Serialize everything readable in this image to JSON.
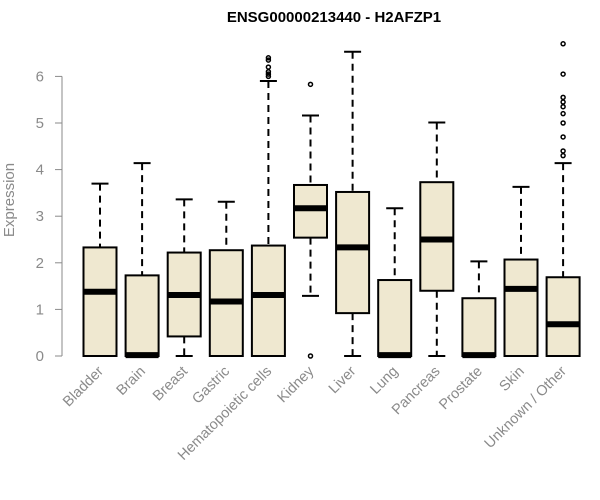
{
  "chart_data": {
    "type": "box",
    "title": "ENSG00000213440 - H2AFZP1",
    "xlabel": "",
    "ylabel": "Expression",
    "ylim": [
      0,
      6.8
    ],
    "yticks": [
      0,
      1,
      2,
      3,
      4,
      5,
      6
    ],
    "box_fill": "#efe8d0",
    "categories": [
      "Bladder",
      "Brain",
      "Breast",
      "Gastric",
      "Hematopoietic cells",
      "Kidney",
      "Liver",
      "Lung",
      "Pancreas",
      "Prostate",
      "Skin",
      "Unknown / Other"
    ],
    "boxes": [
      {
        "category": "Bladder",
        "whisker_low": 0,
        "q1": 0,
        "median": 1.38,
        "q3": 2.33,
        "whisker_high": 3.7,
        "outliers": []
      },
      {
        "category": "Brain",
        "whisker_low": 0,
        "q1": 0,
        "median": 0.02,
        "q3": 1.73,
        "whisker_high": 4.14,
        "outliers": []
      },
      {
        "category": "Breast",
        "whisker_low": 0,
        "q1": 0.42,
        "median": 1.31,
        "q3": 2.22,
        "whisker_high": 3.36,
        "outliers": []
      },
      {
        "category": "Gastric",
        "whisker_low": 0,
        "q1": 0,
        "median": 1.17,
        "q3": 2.27,
        "whisker_high": 3.31,
        "outliers": []
      },
      {
        "category": "Hematopoietic cells",
        "whisker_low": 0,
        "q1": 0,
        "median": 1.31,
        "q3": 2.37,
        "whisker_high": 5.9,
        "outliers": [
          6.0,
          6.05,
          6.1,
          6.2,
          6.35,
          6.4
        ]
      },
      {
        "category": "Kidney",
        "whisker_low": 1.29,
        "q1": 2.54,
        "median": 3.17,
        "q3": 3.67,
        "whisker_high": 5.16,
        "outliers": [
          0.0,
          5.83
        ]
      },
      {
        "category": "Liver",
        "whisker_low": 0,
        "q1": 0.92,
        "median": 2.33,
        "q3": 3.52,
        "whisker_high": 6.53,
        "outliers": []
      },
      {
        "category": "Lung",
        "whisker_low": 0,
        "q1": 0,
        "median": 0.02,
        "q3": 1.63,
        "whisker_high": 3.17,
        "outliers": []
      },
      {
        "category": "Pancreas",
        "whisker_low": 0,
        "q1": 1.4,
        "median": 2.5,
        "q3": 3.73,
        "whisker_high": 5.01,
        "outliers": []
      },
      {
        "category": "Prostate",
        "whisker_low": 0,
        "q1": 0,
        "median": 0.02,
        "q3": 1.24,
        "whisker_high": 2.03,
        "outliers": []
      },
      {
        "category": "Skin",
        "whisker_low": 0,
        "q1": 0,
        "median": 1.44,
        "q3": 2.07,
        "whisker_high": 3.63,
        "outliers": []
      },
      {
        "category": "Unknown / Other",
        "whisker_low": 0,
        "q1": 0,
        "median": 0.68,
        "q3": 1.69,
        "whisker_high": 4.14,
        "outliers": [
          4.3,
          4.4,
          4.7,
          5.0,
          5.2,
          5.35,
          5.45,
          5.55,
          6.05,
          6.7
        ]
      }
    ]
  }
}
